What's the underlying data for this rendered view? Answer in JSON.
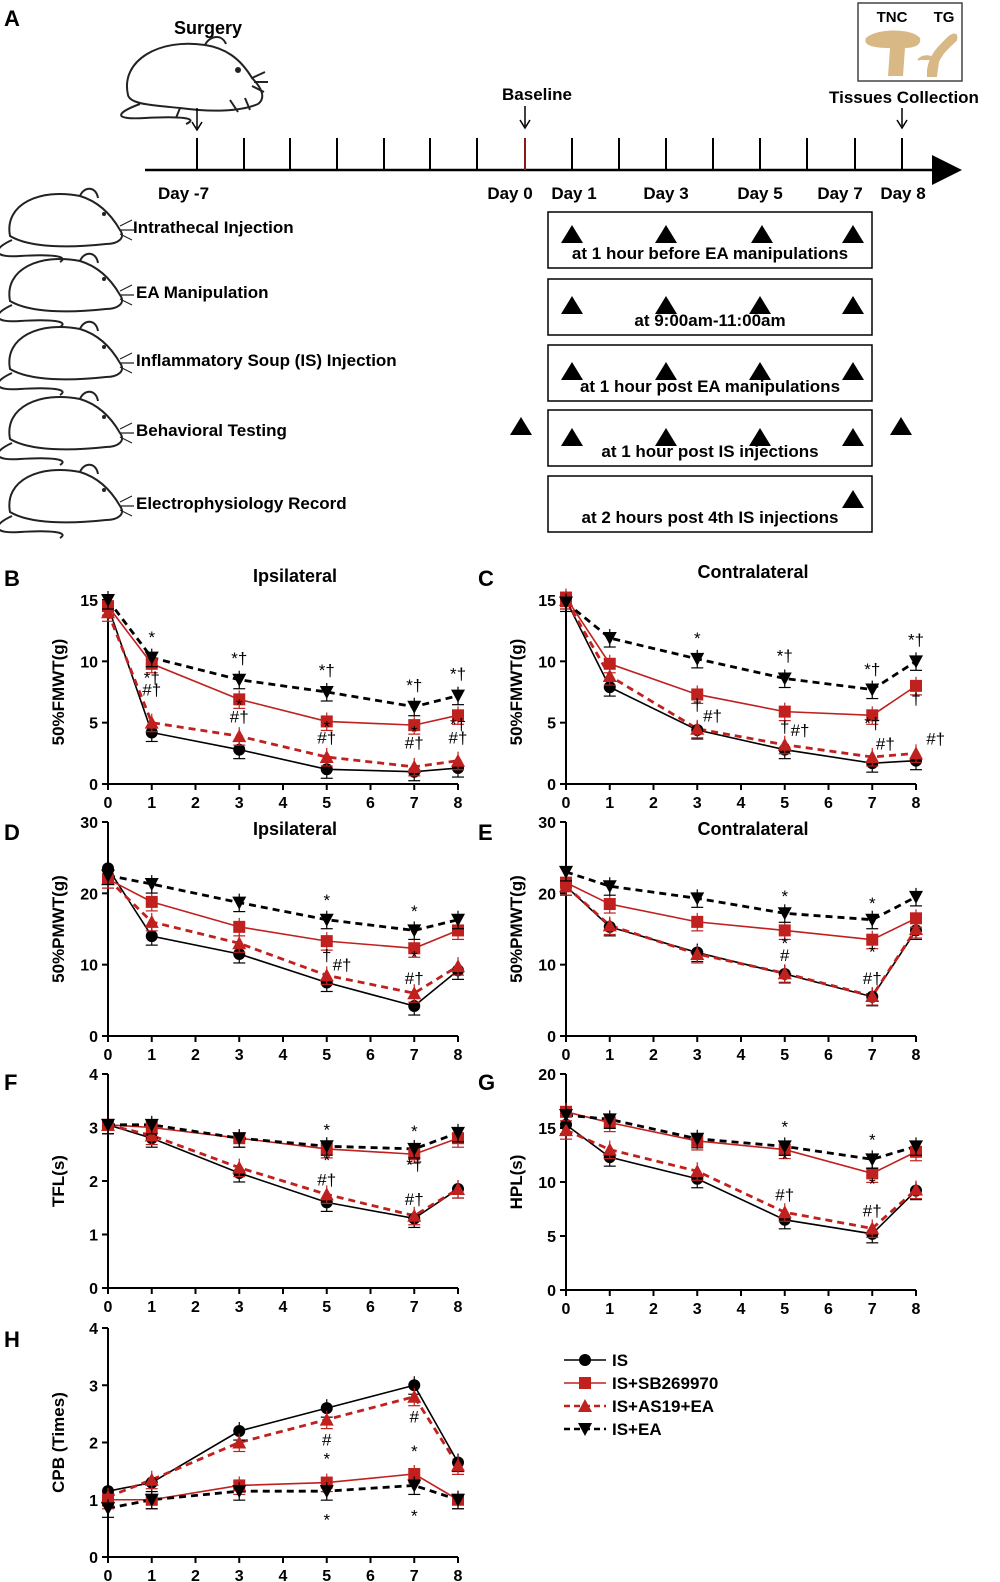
{
  "figure": {
    "panel_a": {
      "letter": "A",
      "surgery_label": "Surgery",
      "baseline_label": "Baseline",
      "tissues_label": "Tissues Collection",
      "tnc_label": "TNC",
      "tg_label": "TG",
      "timeline_days": [
        "Day -7",
        "Day 0",
        "Day 1",
        "Day 3",
        "Day 5",
        "Day 7",
        "Day 8"
      ],
      "protocols": [
        {
          "name": "Intrathecal Injection",
          "note": "at 1 hour before EA manipulations"
        },
        {
          "name": "EA Manipulation",
          "note": "at 9:00am-11:00am"
        },
        {
          "name": "Inflammatory Soup (IS) Injection",
          "note": "at 1 hour post EA manipulations"
        },
        {
          "name": "Behavioral Testing",
          "note": "at 1 hour post IS injections"
        },
        {
          "name": "Electrophysiology Record",
          "note": "at 2 hours post 4th IS injections"
        }
      ]
    },
    "legend": [
      {
        "label": "IS",
        "color": "#000000",
        "marker": "circle"
      },
      {
        "label": "IS+SB269970",
        "color": "#c0201e",
        "marker": "square"
      },
      {
        "label": "IS+AS19+EA",
        "color": "#c0201e",
        "marker": "triangle-up"
      },
      {
        "label": "IS+EA",
        "color": "#000000",
        "marker": "triangle-down"
      }
    ],
    "colors": {
      "black": "#000000",
      "red": "#c0201e"
    }
  },
  "chart_data": [
    {
      "panel": "B",
      "type": "line",
      "title": "Ipsilateral",
      "ylabel": "50%FMWT(g)",
      "x": [
        0,
        1,
        3,
        5,
        7,
        8
      ],
      "xticks": [
        "0",
        "1",
        "2",
        "3",
        "4",
        "5",
        "6",
        "7",
        "8"
      ],
      "ylim": [
        0,
        15
      ],
      "yticks": [
        "0",
        "5",
        "10",
        "15"
      ],
      "series": [
        {
          "name": "IS",
          "values": [
            14.5,
            4.2,
            2.8,
            1.2,
            1.0,
            1.3
          ]
        },
        {
          "name": "IS+SB269970",
          "values": [
            14.5,
            9.8,
            6.9,
            5.1,
            4.8,
            5.6
          ]
        },
        {
          "name": "IS+AS19+EA",
          "values": [
            14.0,
            5.0,
            3.9,
            2.2,
            1.4,
            1.9
          ]
        },
        {
          "name": "IS+EA",
          "values": [
            15.0,
            10.3,
            8.5,
            7.5,
            6.3,
            7.2
          ]
        }
      ],
      "annotations": [
        {
          "x": 1,
          "y": 11.5,
          "text": "*"
        },
        {
          "x": 1,
          "y": 8.2,
          "text": "*†"
        },
        {
          "x": 1,
          "y": 7.2,
          "text": "#†"
        },
        {
          "x": 3,
          "y": 9.8,
          "text": "*†"
        },
        {
          "x": 3,
          "y": 6.0,
          "text": "*"
        },
        {
          "x": 3,
          "y": 5.0,
          "text": "#†"
        },
        {
          "x": 5,
          "y": 8.8,
          "text": "*†"
        },
        {
          "x": 5,
          "y": 4.2,
          "text": "*"
        },
        {
          "x": 5,
          "y": 3.3,
          "text": "#†"
        },
        {
          "x": 7,
          "y": 7.6,
          "text": "*†"
        },
        {
          "x": 7,
          "y": 3.8,
          "text": "*"
        },
        {
          "x": 7,
          "y": 2.9,
          "text": "#†"
        },
        {
          "x": 8,
          "y": 8.5,
          "text": "*†"
        },
        {
          "x": 8,
          "y": 4.4,
          "text": "*†"
        },
        {
          "x": 8,
          "y": 3.3,
          "text": "#†"
        }
      ]
    },
    {
      "panel": "C",
      "type": "line",
      "title": "Contralateral",
      "ylabel": "50%FMWT(g)",
      "x": [
        0,
        1,
        3,
        5,
        7,
        8
      ],
      "xticks": [
        "0",
        "1",
        "2",
        "3",
        "4",
        "5",
        "6",
        "7",
        "8"
      ],
      "ylim": [
        0,
        15
      ],
      "yticks": [
        "0",
        "5",
        "10",
        "15"
      ],
      "series": [
        {
          "name": "IS",
          "values": [
            15.0,
            7.9,
            4.4,
            2.8,
            1.7,
            1.9
          ]
        },
        {
          "name": "IS+SB269970",
          "values": [
            15.2,
            9.8,
            7.3,
            5.9,
            5.6,
            8.0
          ]
        },
        {
          "name": "IS+AS19+EA",
          "values": [
            15.0,
            8.8,
            4.5,
            3.2,
            2.2,
            2.5
          ]
        },
        {
          "name": "IS+EA",
          "values": [
            14.8,
            11.9,
            10.2,
            8.6,
            7.7,
            10.0
          ]
        }
      ],
      "annotations": [
        {
          "x": 3,
          "y": 11.4,
          "text": "*"
        },
        {
          "x": 3,
          "y": 6.0,
          "text": "†"
        },
        {
          "x": 3.35,
          "y": 5.1,
          "text": "#†"
        },
        {
          "x": 5,
          "y": 10.0,
          "text": "*†"
        },
        {
          "x": 5,
          "y": 4.2,
          "text": "†"
        },
        {
          "x": 5.35,
          "y": 3.9,
          "text": "#†"
        },
        {
          "x": 7,
          "y": 8.9,
          "text": "*†"
        },
        {
          "x": 7,
          "y": 4.5,
          "text": "*†"
        },
        {
          "x": 7.3,
          "y": 2.8,
          "text": "#†"
        },
        {
          "x": 8,
          "y": 11.3,
          "text": "*†"
        },
        {
          "x": 8,
          "y": 6.5,
          "text": "†"
        },
        {
          "x": 8.45,
          "y": 3.2,
          "text": "#†"
        }
      ]
    },
    {
      "panel": "D",
      "type": "line",
      "title": "Ipsilateral",
      "ylabel": "50%PMWT(g)",
      "x": [
        0,
        1,
        3,
        5,
        7,
        8
      ],
      "xticks": [
        "0",
        "1",
        "2",
        "3",
        "4",
        "5",
        "6",
        "7",
        "8"
      ],
      "ylim": [
        0,
        30
      ],
      "yticks": [
        "0",
        "10",
        "20",
        "30"
      ],
      "series": [
        {
          "name": "IS",
          "values": [
            23.5,
            14.0,
            11.5,
            7.5,
            4.2,
            9.2
          ]
        },
        {
          "name": "IS+SB269970",
          "values": [
            22.0,
            18.8,
            15.3,
            13.3,
            12.3,
            14.8
          ]
        },
        {
          "name": "IS+AS19+EA",
          "values": [
            22.0,
            16.0,
            13.0,
            8.5,
            6.0,
            9.8
          ]
        },
        {
          "name": "IS+EA",
          "values": [
            22.5,
            21.3,
            18.7,
            16.3,
            14.8,
            16.3
          ]
        }
      ],
      "annotations": [
        {
          "x": 5,
          "y": 18.2,
          "text": "*"
        },
        {
          "x": 5,
          "y": 10.5,
          "text": "†"
        },
        {
          "x": 5.35,
          "y": 9.2,
          "text": "#†"
        },
        {
          "x": 7,
          "y": 16.7,
          "text": "*"
        },
        {
          "x": 7,
          "y": 10.3,
          "text": "*"
        },
        {
          "x": 7,
          "y": 7.3,
          "text": "#†"
        }
      ]
    },
    {
      "panel": "E",
      "type": "line",
      "title": "Contralateral",
      "ylabel": "50%PMWT(g)",
      "x": [
        0,
        1,
        3,
        5,
        7,
        8
      ],
      "xticks": [
        "0",
        "1",
        "2",
        "3",
        "4",
        "5",
        "6",
        "7",
        "8"
      ],
      "ylim": [
        0,
        30
      ],
      "yticks": [
        "0",
        "10",
        "20",
        "30"
      ],
      "series": [
        {
          "name": "IS",
          "values": [
            21.0,
            15.3,
            11.7,
            8.7,
            5.5,
            14.8
          ]
        },
        {
          "name": "IS+SB269970",
          "values": [
            21.5,
            18.5,
            16.0,
            14.8,
            13.5,
            16.5
          ]
        },
        {
          "name": "IS+AS19+EA",
          "values": [
            21.0,
            15.5,
            11.5,
            8.8,
            5.6,
            15.0
          ]
        },
        {
          "name": "IS+EA",
          "values": [
            23.0,
            21.0,
            19.3,
            17.2,
            16.3,
            19.5
          ]
        }
      ],
      "annotations": [
        {
          "x": 5,
          "y": 18.8,
          "text": "*"
        },
        {
          "x": 5,
          "y": 12.2,
          "text": "*"
        },
        {
          "x": 5,
          "y": 10.5,
          "text": "#"
        },
        {
          "x": 7,
          "y": 17.8,
          "text": "*"
        },
        {
          "x": 7,
          "y": 11.0,
          "text": "*"
        },
        {
          "x": 7,
          "y": 7.3,
          "text": "#†"
        }
      ]
    },
    {
      "panel": "F",
      "type": "line",
      "title": "",
      "ylabel": "TFL(s)",
      "x": [
        0,
        1,
        3,
        5,
        7,
        8
      ],
      "xticks": [
        "0",
        "1",
        "2",
        "3",
        "4",
        "5",
        "6",
        "7",
        "8"
      ],
      "ylim": [
        0,
        4
      ],
      "yticks": [
        "0",
        "1",
        "2",
        "3",
        "4"
      ],
      "series": [
        {
          "name": "IS",
          "values": [
            3.05,
            2.8,
            2.15,
            1.6,
            1.3,
            1.85
          ]
        },
        {
          "name": "IS+SB269970",
          "values": [
            3.05,
            3.0,
            2.8,
            2.6,
            2.5,
            2.8
          ]
        },
        {
          "name": "IS+AS19+EA",
          "values": [
            3.05,
            2.85,
            2.25,
            1.75,
            1.35,
            1.85
          ]
        },
        {
          "name": "IS+EA",
          "values": [
            3.05,
            3.05,
            2.8,
            2.65,
            2.6,
            2.9
          ]
        }
      ],
      "annotations": [
        {
          "x": 5,
          "y": 2.85,
          "text": "*"
        },
        {
          "x": 5,
          "y": 2.28,
          "text": "*"
        },
        {
          "x": 5,
          "y": 1.92,
          "text": "#†"
        },
        {
          "x": 7,
          "y": 2.82,
          "text": "*"
        },
        {
          "x": 7,
          "y": 2.2,
          "text": "*†"
        },
        {
          "x": 7,
          "y": 1.55,
          "text": "#†"
        }
      ]
    },
    {
      "panel": "G",
      "type": "line",
      "title": "",
      "ylabel": "HPL(s)",
      "x": [
        0,
        1,
        3,
        5,
        7,
        8
      ],
      "xticks": [
        "0",
        "1",
        "2",
        "3",
        "4",
        "5",
        "6",
        "7",
        "8"
      ],
      "ylim": [
        0,
        20
      ],
      "yticks": [
        "0",
        "5",
        "10",
        "15",
        "20"
      ],
      "series": [
        {
          "name": "IS",
          "values": [
            15.3,
            12.3,
            10.3,
            6.5,
            5.2,
            9.2
          ]
        },
        {
          "name": "IS+SB269970",
          "values": [
            16.5,
            15.5,
            13.8,
            13.0,
            10.8,
            12.8
          ]
        },
        {
          "name": "IS+AS19+EA",
          "values": [
            14.8,
            13.0,
            11.0,
            7.2,
            5.7,
            9.3
          ]
        },
        {
          "name": "IS+EA",
          "values": [
            16.2,
            15.8,
            14.0,
            13.3,
            12.1,
            13.3
          ]
        }
      ],
      "annotations": [
        {
          "x": 5,
          "y": 14.6,
          "text": "*"
        },
        {
          "x": 5,
          "y": 11.6,
          "text": "*"
        },
        {
          "x": 5,
          "y": 8.3,
          "text": "#†"
        },
        {
          "x": 7,
          "y": 13.4,
          "text": "*"
        },
        {
          "x": 7,
          "y": 9.3,
          "text": "*"
        },
        {
          "x": 7,
          "y": 6.8,
          "text": "#†"
        }
      ]
    },
    {
      "panel": "H",
      "type": "line",
      "title": "",
      "ylabel": "CPB (Times)",
      "x": [
        0,
        1,
        3,
        5,
        7,
        8
      ],
      "xticks": [
        "0",
        "1",
        "2",
        "3",
        "4",
        "5",
        "6",
        "7",
        "8"
      ],
      "ylim": [
        0,
        4
      ],
      "yticks": [
        "0",
        "1",
        "2",
        "3",
        "4"
      ],
      "series": [
        {
          "name": "IS",
          "values": [
            1.15,
            1.3,
            2.2,
            2.6,
            3.0,
            1.65
          ]
        },
        {
          "name": "IS+SB269970",
          "values": [
            1.0,
            1.0,
            1.25,
            1.3,
            1.45,
            1.0
          ]
        },
        {
          "name": "IS+AS19+EA",
          "values": [
            1.05,
            1.35,
            2.0,
            2.4,
            2.8,
            1.6
          ]
        },
        {
          "name": "IS+EA",
          "values": [
            0.85,
            1.0,
            1.15,
            1.15,
            1.25,
            1.0
          ]
        }
      ],
      "annotations": [
        {
          "x": 5,
          "y": 1.62,
          "text": "*"
        },
        {
          "x": 5,
          "y": 0.55,
          "text": "*"
        },
        {
          "x": 5,
          "y": 1.95,
          "text": "#"
        },
        {
          "x": 7,
          "y": 1.75,
          "text": "*"
        },
        {
          "x": 7,
          "y": 0.62,
          "text": "*"
        },
        {
          "x": 7,
          "y": 2.35,
          "text": "#"
        }
      ]
    }
  ]
}
